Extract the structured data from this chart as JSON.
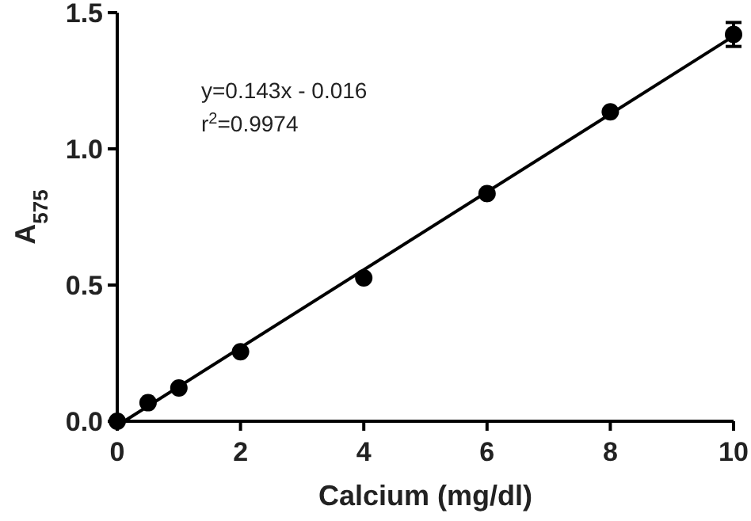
{
  "chart_data": {
    "type": "scatter",
    "xlabel": "Calcium (mg/dl)",
    "ylabel": "A$_{575}$",
    "annotations": [
      "y=0.143x - 0.016",
      "r$^{2}$=0.9974"
    ],
    "xlim": [
      0,
      10
    ],
    "xticks": [
      0,
      2,
      4,
      6,
      8,
      10
    ],
    "ylim": [
      0,
      1.5
    ],
    "yticks": [
      {
        "value": 0,
        "label": "0.0"
      },
      {
        "value": 0.5,
        "label": "0.5"
      },
      {
        "value": 1,
        "label": "1.0"
      },
      {
        "value": 1.5,
        "label": "1.5"
      }
    ],
    "grid": false,
    "marker": "circle",
    "series": [
      {
        "color": "#000000",
        "x": [
          0,
          0.5,
          1,
          2,
          4,
          6,
          8,
          10
        ],
        "values": [
          0,
          0.068,
          0.122,
          0.255,
          0.526,
          0.836,
          1.136,
          1.42
        ],
        "errors": [
          null,
          null,
          null,
          null,
          null,
          null,
          null,
          0.044
        ]
      },
      {
        "type": "line",
        "color": "#000000",
        "line_style": "solid",
        "marker": "none",
        "x": [
          0.112,
          10
        ],
        "values": [
          0,
          1.414
        ]
      }
    ]
  }
}
